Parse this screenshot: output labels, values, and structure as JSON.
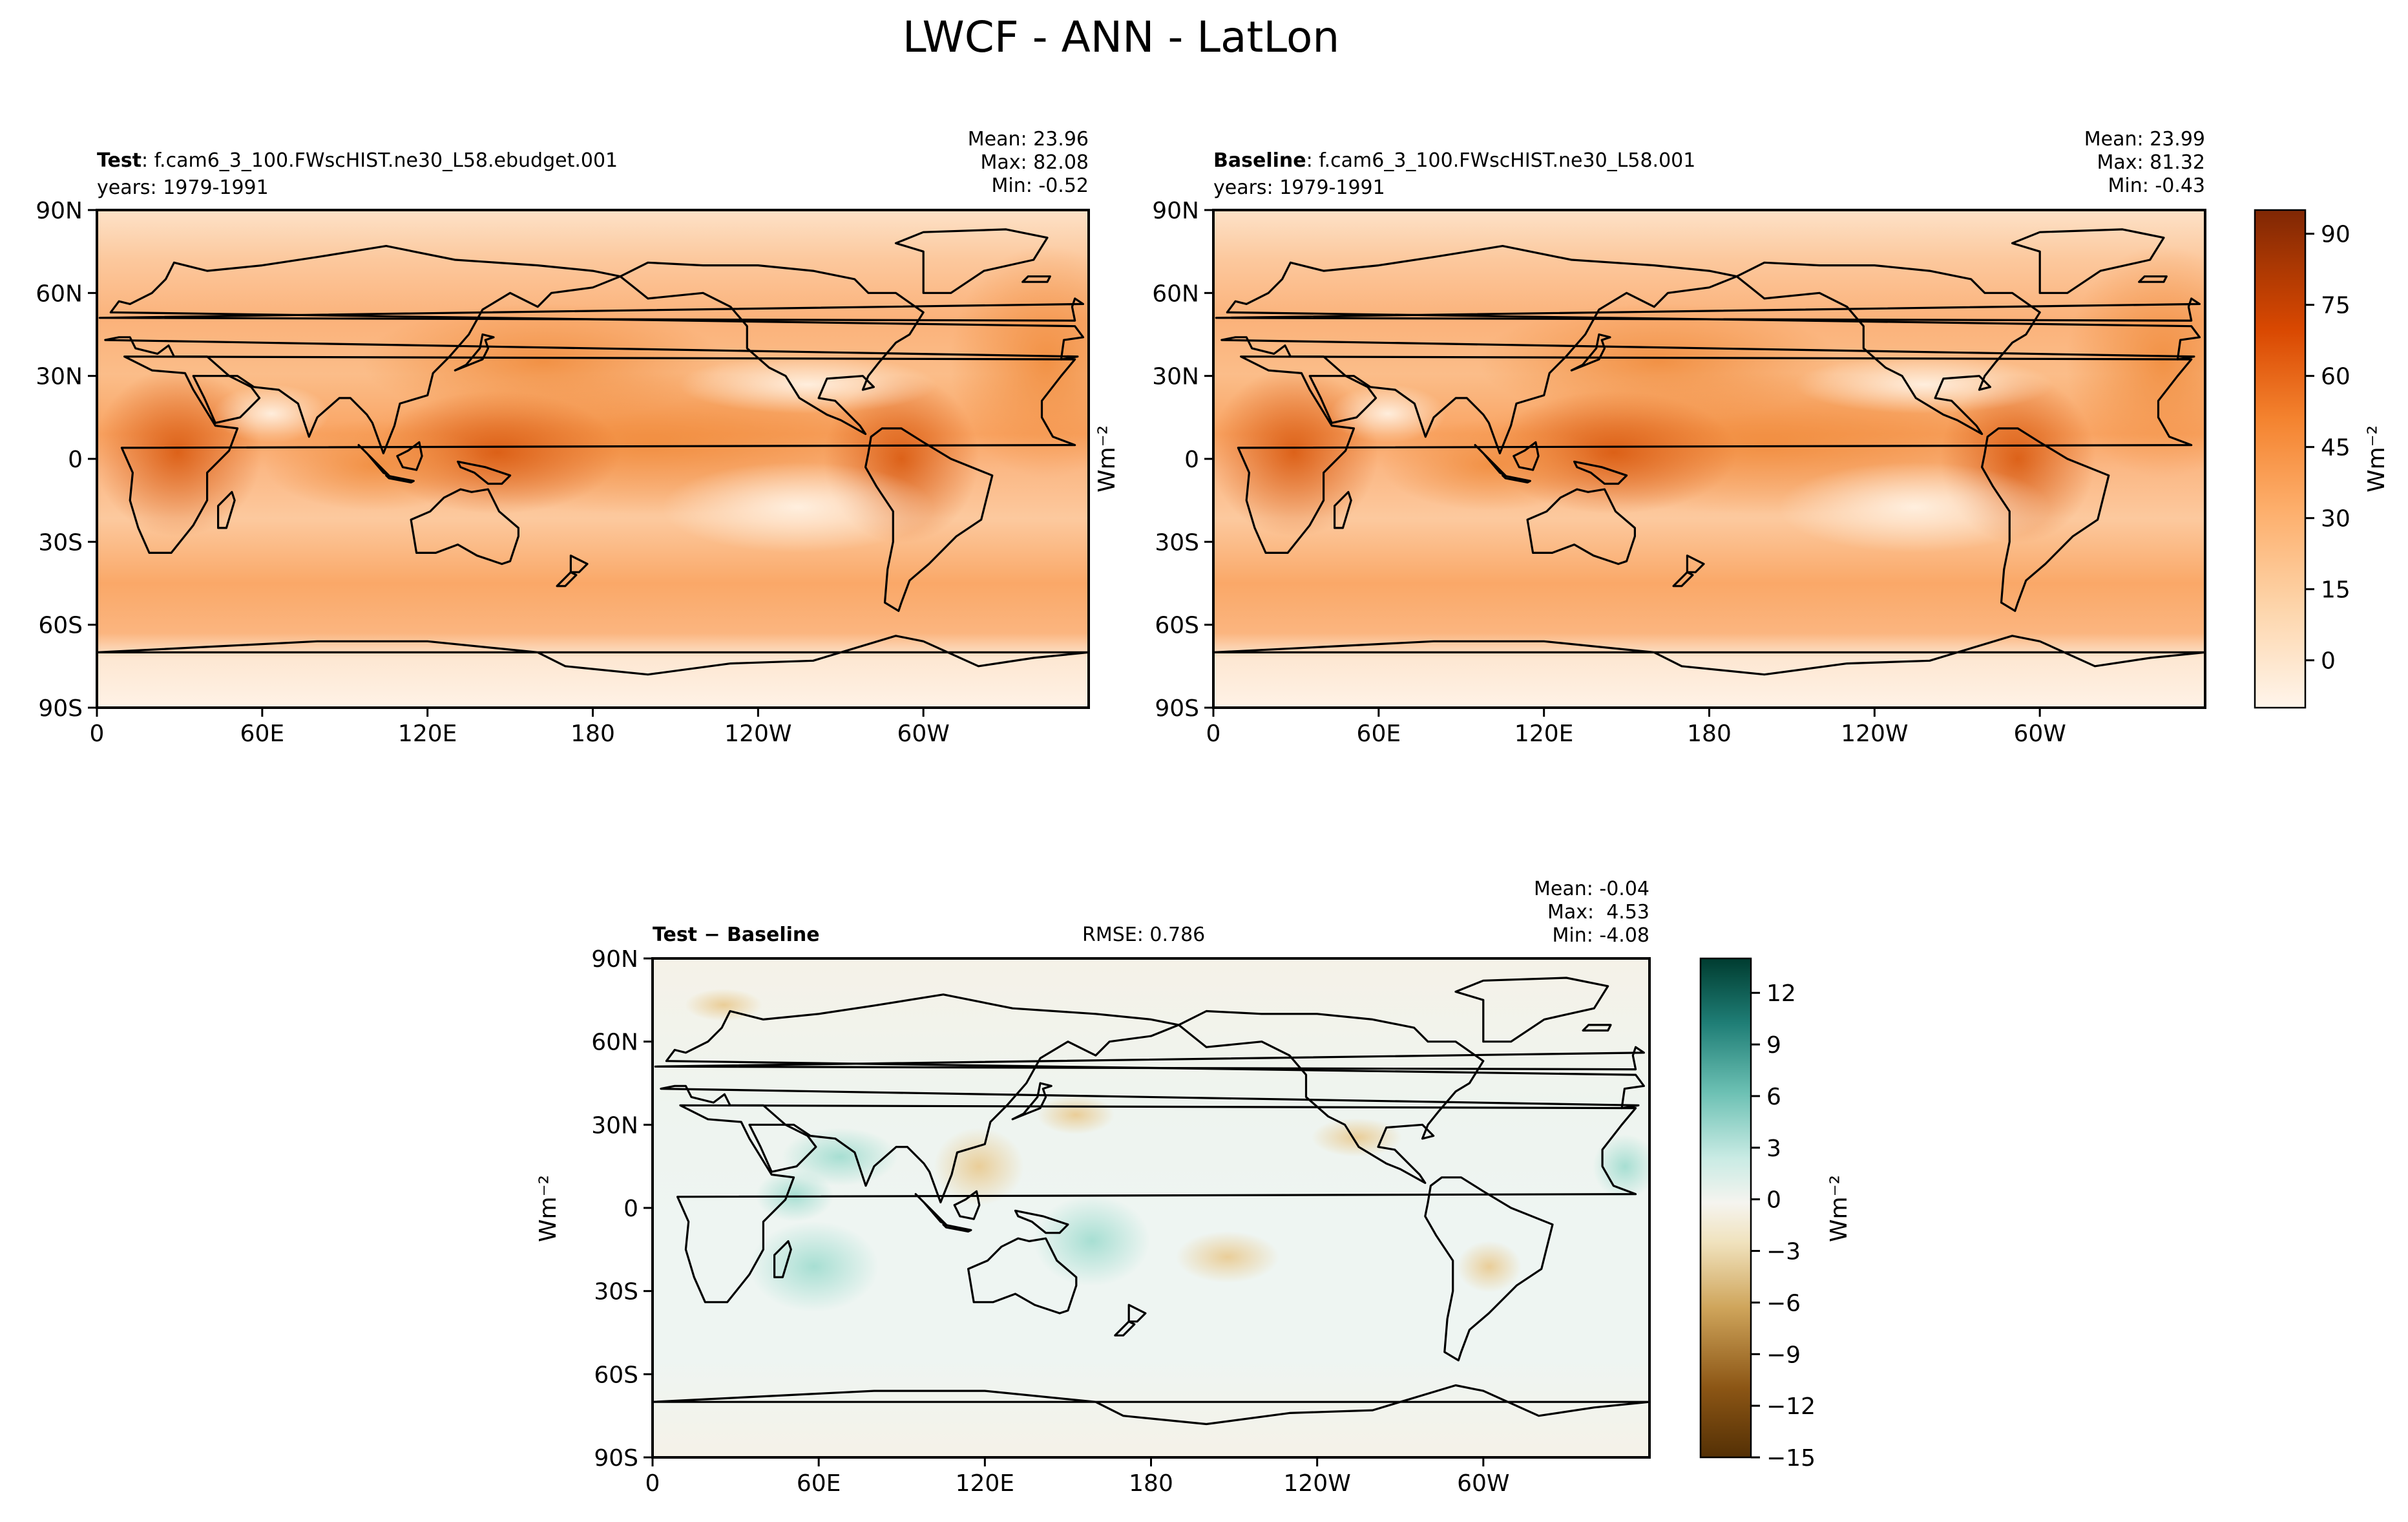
{
  "title": "LWCF - ANN - LatLon",
  "chart_data": [
    {
      "type": "heatmap",
      "label_bold": "Test",
      "case_name": ": f.cam6_3_100.FWscHIST.ne30_L58.ebudget.001",
      "years": "years: 1979-1991",
      "stats": [
        "Mean: 23.96",
        "Max: 82.08",
        "Min: -0.52"
      ],
      "mean": 23.96,
      "max": 82.08,
      "min": -0.52,
      "ylabel": "Wm⁻²",
      "x_ticks": [
        "0",
        "60E",
        "120E",
        "180",
        "120W",
        "60W"
      ],
      "y_ticks": [
        "90N",
        "60N",
        "30N",
        "0",
        "30S",
        "60S",
        "90S"
      ],
      "xlim": [
        0,
        360
      ],
      "ylim": [
        -90,
        90
      ]
    },
    {
      "type": "heatmap",
      "label_bold": "Baseline",
      "case_name": ": f.cam6_3_100.FWscHIST.ne30_L58.001",
      "years": "years: 1979-1991",
      "stats": [
        "Mean: 23.99",
        "Max: 81.32",
        "Min: -0.43"
      ],
      "mean": 23.99,
      "max": 81.32,
      "min": -0.43,
      "x_ticks": [
        "0",
        "60E",
        "120E",
        "180",
        "120W",
        "60W"
      ],
      "y_ticks": [
        "90N",
        "60N",
        "30N",
        "0",
        "30S",
        "60S",
        "90S"
      ],
      "xlim": [
        0,
        360
      ],
      "ylim": [
        -90,
        90
      ],
      "colorbar": {
        "label": "Wm⁻²",
        "ticks": [
          "90",
          "75",
          "60",
          "45",
          "30",
          "15",
          "0"
        ],
        "range": [
          -10,
          95
        ],
        "palette": "Oranges",
        "colors": [
          "#fff5eb",
          "#fdd0a2",
          "#fdae6b",
          "#fd8d3c",
          "#e6550d",
          "#a63603",
          "#7f2704"
        ]
      }
    },
    {
      "type": "heatmap",
      "label_bold": "Test − Baseline",
      "rmse": "RMSE: 0.786",
      "stats": [
        "Mean: -0.04",
        "Max:  4.53",
        "Min: -4.08"
      ],
      "mean": -0.04,
      "max": 4.53,
      "min": -4.08,
      "rmse_value": 0.786,
      "ylabel": "Wm⁻²",
      "x_ticks": [
        "0",
        "60E",
        "120E",
        "180",
        "120W",
        "60W"
      ],
      "y_ticks": [
        "90N",
        "60N",
        "30N",
        "0",
        "30S",
        "60S",
        "90S"
      ],
      "xlim": [
        0,
        360
      ],
      "ylim": [
        -90,
        90
      ],
      "colorbar": {
        "label": "Wm⁻²",
        "ticks": [
          "12",
          "9",
          "6",
          "3",
          "0",
          "−3",
          "−6",
          "−9",
          "−12",
          "−15"
        ],
        "range": [
          -15,
          14
        ],
        "palette": "BrBG",
        "colors": [
          "#543005",
          "#a06a24",
          "#dfc27d",
          "#f5f2e8",
          "#80cdc1",
          "#35978f",
          "#003c30"
        ]
      }
    }
  ]
}
